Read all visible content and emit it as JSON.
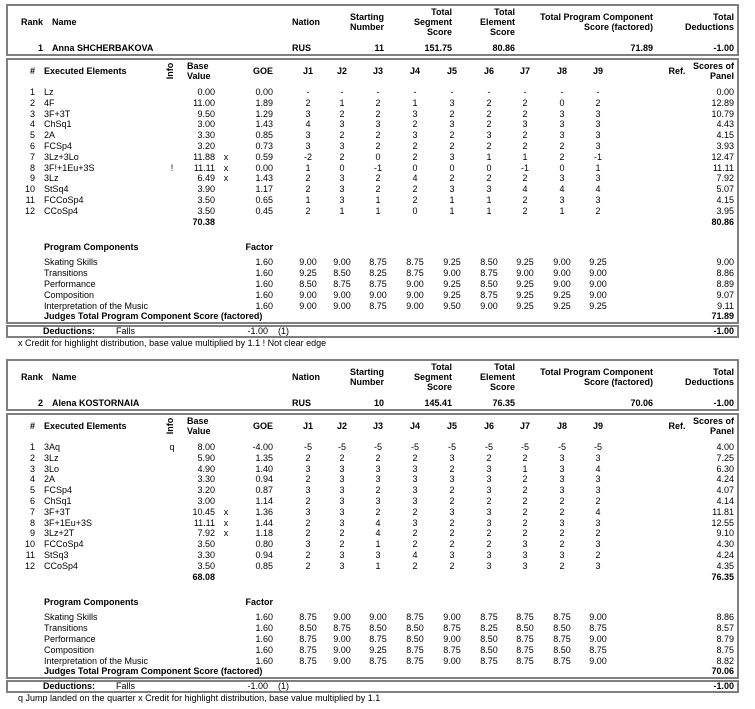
{
  "labels": {
    "rank": "Rank",
    "name": "Name",
    "nation": "Nation",
    "starting_number": [
      "Starting",
      "Number"
    ],
    "tss": [
      "Total",
      "Segment",
      "Score"
    ],
    "tes": [
      "Total",
      "Element",
      "Score"
    ],
    "pcs": [
      "Total Program Component",
      "Score (factored)"
    ],
    "ded": [
      "Total",
      "Deductions"
    ],
    "num": "#",
    "elements": "Executed Elements",
    "info": "Info",
    "base": [
      "Base",
      "Value"
    ],
    "goe": "GOE",
    "judges": [
      "J1",
      "J2",
      "J3",
      "J4",
      "J5",
      "J6",
      "J7",
      "J8",
      "J9"
    ],
    "ref": "Ref.",
    "panel": [
      "Scores of",
      "Panel"
    ],
    "program_components": "Program Components",
    "factor": "Factor",
    "judges_total": "Judges Total Program Component Score (factored)",
    "deductions": "Deductions:"
  },
  "skaters": [
    {
      "rank": "1",
      "name": "Anna SHCHERBAKOVA",
      "nation": "RUS",
      "starting_number": "11",
      "tss": "151.75",
      "tes": "80.86",
      "pcs": "71.89",
      "deductions_total": "-1.00",
      "elements": [
        {
          "num": "1",
          "name": "Lz",
          "info": "",
          "base": "0.00",
          "credit": "",
          "goe": "0.00",
          "judges": [
            "-",
            "-",
            "-",
            "-",
            "-",
            "-",
            "-",
            "-",
            "-"
          ],
          "panel": "0.00"
        },
        {
          "num": "2",
          "name": "4F",
          "info": "",
          "base": "11.00",
          "credit": "",
          "goe": "1.89",
          "judges": [
            "2",
            "1",
            "2",
            "1",
            "3",
            "2",
            "2",
            "0",
            "2"
          ],
          "panel": "12.89"
        },
        {
          "num": "3",
          "name": "3F+3T",
          "info": "",
          "base": "9.50",
          "credit": "",
          "goe": "1.29",
          "judges": [
            "3",
            "2",
            "2",
            "3",
            "2",
            "2",
            "2",
            "3",
            "3"
          ],
          "panel": "10.79"
        },
        {
          "num": "4",
          "name": "ChSq1",
          "info": "",
          "base": "3.00",
          "credit": "",
          "goe": "1.43",
          "judges": [
            "4",
            "3",
            "3",
            "2",
            "3",
            "2",
            "3",
            "3",
            "3"
          ],
          "panel": "4.43"
        },
        {
          "num": "5",
          "name": "2A",
          "info": "",
          "base": "3.30",
          "credit": "",
          "goe": "0.85",
          "judges": [
            "3",
            "2",
            "2",
            "3",
            "2",
            "3",
            "2",
            "3",
            "3"
          ],
          "panel": "4.15"
        },
        {
          "num": "6",
          "name": "FCSp4",
          "info": "",
          "base": "3.20",
          "credit": "",
          "goe": "0.73",
          "judges": [
            "3",
            "3",
            "2",
            "2",
            "2",
            "2",
            "2",
            "2",
            "3"
          ],
          "panel": "3.93"
        },
        {
          "num": "7",
          "name": "3Lz+3Lo",
          "info": "",
          "base": "11.88",
          "credit": "x",
          "goe": "0.59",
          "judges": [
            "-2",
            "2",
            "0",
            "2",
            "3",
            "1",
            "1",
            "2",
            "-1"
          ],
          "panel": "12.47"
        },
        {
          "num": "8",
          "name": "3F!+1Eu+3S",
          "info": "!",
          "base": "11.11",
          "credit": "x",
          "goe": "0.00",
          "judges": [
            "1",
            "0",
            "-1",
            "0",
            "0",
            "0",
            "-1",
            "0",
            "1"
          ],
          "panel": "11.11"
        },
        {
          "num": "9",
          "name": "3Lz",
          "info": "",
          "base": "6.49",
          "credit": "x",
          "goe": "1.43",
          "judges": [
            "2",
            "3",
            "2",
            "4",
            "2",
            "2",
            "2",
            "3",
            "3"
          ],
          "panel": "7.92"
        },
        {
          "num": "10",
          "name": "StSq4",
          "info": "",
          "base": "3.90",
          "credit": "",
          "goe": "1.17",
          "judges": [
            "2",
            "3",
            "2",
            "2",
            "3",
            "3",
            "4",
            "4",
            "4"
          ],
          "panel": "5.07"
        },
        {
          "num": "11",
          "name": "FCCoSp4",
          "info": "",
          "base": "3.50",
          "credit": "",
          "goe": "0.65",
          "judges": [
            "1",
            "3",
            "1",
            "2",
            "1",
            "1",
            "2",
            "3",
            "3"
          ],
          "panel": "4.15"
        },
        {
          "num": "12",
          "name": "CCoSp4",
          "info": "",
          "base": "3.50",
          "credit": "",
          "goe": "0.45",
          "judges": [
            "2",
            "1",
            "1",
            "0",
            "1",
            "1",
            "2",
            "1",
            "2"
          ],
          "panel": "3.95"
        }
      ],
      "base_total": "70.38",
      "elements_total": "80.86",
      "components": [
        {
          "name": "Skating Skills",
          "factor": "1.60",
          "judges": [
            "9.00",
            "9.00",
            "8.75",
            "8.75",
            "9.25",
            "8.50",
            "9.25",
            "9.00",
            "9.25"
          ],
          "panel": "9.00"
        },
        {
          "name": "Transitions",
          "factor": "1.60",
          "judges": [
            "9.25",
            "8.50",
            "8.25",
            "8.75",
            "9.00",
            "8.75",
            "9.00",
            "9.00",
            "9.00"
          ],
          "panel": "8.86"
        },
        {
          "name": "Performance",
          "factor": "1.60",
          "judges": [
            "8.50",
            "8.75",
            "8.75",
            "9.00",
            "9.25",
            "8.50",
            "9.25",
            "9.00",
            "9.00"
          ],
          "panel": "8.89"
        },
        {
          "name": "Composition",
          "factor": "1.60",
          "judges": [
            "9.00",
            "9.00",
            "9.00",
            "9.00",
            "9.25",
            "8.75",
            "9.25",
            "9.25",
            "9.00"
          ],
          "panel": "9.07"
        },
        {
          "name": "Interpretation of the Music",
          "factor": "1.60",
          "judges": [
            "9.00",
            "9.00",
            "8.75",
            "9.00",
            "9.50",
            "9.00",
            "9.25",
            "9.25",
            "9.25"
          ],
          "panel": "9.11"
        }
      ],
      "pcs_total": "71.89",
      "deductions": {
        "type": "Falls",
        "value": "-1.00",
        "count": "(1)",
        "total": "-1.00"
      },
      "footnote": "x Credit for highlight distribution, base value multiplied by 1.1   ! Not clear edge"
    },
    {
      "rank": "2",
      "name": "Alena KOSTORNAIA",
      "nation": "RUS",
      "starting_number": "10",
      "tss": "145.41",
      "tes": "76.35",
      "pcs": "70.06",
      "deductions_total": "-1.00",
      "elements": [
        {
          "num": "1",
          "name": "3Aq",
          "info": "q",
          "base": "8.00",
          "credit": "",
          "goe": "-4.00",
          "judges": [
            "-5",
            "-5",
            "-5",
            "-5",
            "-5",
            "-5",
            "-5",
            "-5",
            "-5"
          ],
          "panel": "4.00"
        },
        {
          "num": "2",
          "name": "3Lz",
          "info": "",
          "base": "5.90",
          "credit": "",
          "goe": "1.35",
          "judges": [
            "2",
            "2",
            "2",
            "2",
            "3",
            "2",
            "2",
            "3",
            "3"
          ],
          "panel": "7.25"
        },
        {
          "num": "3",
          "name": "3Lo",
          "info": "",
          "base": "4.90",
          "credit": "",
          "goe": "1.40",
          "judges": [
            "3",
            "3",
            "3",
            "3",
            "2",
            "3",
            "1",
            "3",
            "4"
          ],
          "panel": "6.30"
        },
        {
          "num": "4",
          "name": "2A",
          "info": "",
          "base": "3.30",
          "credit": "",
          "goe": "0.94",
          "judges": [
            "2",
            "3",
            "3",
            "3",
            "3",
            "3",
            "2",
            "3",
            "3"
          ],
          "panel": "4.24"
        },
        {
          "num": "5",
          "name": "FCSp4",
          "info": "",
          "base": "3.20",
          "credit": "",
          "goe": "0.87",
          "judges": [
            "3",
            "3",
            "2",
            "3",
            "2",
            "3",
            "2",
            "3",
            "3"
          ],
          "panel": "4.07"
        },
        {
          "num": "6",
          "name": "ChSq1",
          "info": "",
          "base": "3.00",
          "credit": "",
          "goe": "1.14",
          "judges": [
            "2",
            "3",
            "3",
            "3",
            "2",
            "2",
            "2",
            "2",
            "2"
          ],
          "panel": "4.14"
        },
        {
          "num": "7",
          "name": "3F+3T",
          "info": "",
          "base": "10.45",
          "credit": "x",
          "goe": "1.36",
          "judges": [
            "3",
            "3",
            "2",
            "2",
            "3",
            "3",
            "2",
            "2",
            "4"
          ],
          "panel": "11.81"
        },
        {
          "num": "8",
          "name": "3F+1Eu+3S",
          "info": "",
          "base": "11.11",
          "credit": "x",
          "goe": "1.44",
          "judges": [
            "2",
            "3",
            "4",
            "3",
            "2",
            "3",
            "2",
            "3",
            "3"
          ],
          "panel": "12.55"
        },
        {
          "num": "9",
          "name": "3Lz+2T",
          "info": "",
          "base": "7.92",
          "credit": "x",
          "goe": "1.18",
          "judges": [
            "2",
            "2",
            "4",
            "2",
            "2",
            "2",
            "2",
            "2",
            "2"
          ],
          "panel": "9.10"
        },
        {
          "num": "10",
          "name": "FCCoSp4",
          "info": "",
          "base": "3.50",
          "credit": "",
          "goe": "0.80",
          "judges": [
            "3",
            "2",
            "1",
            "2",
            "2",
            "2",
            "3",
            "2",
            "3"
          ],
          "panel": "4.30"
        },
        {
          "num": "11",
          "name": "StSq3",
          "info": "",
          "base": "3.30",
          "credit": "",
          "goe": "0.94",
          "judges": [
            "2",
            "3",
            "3",
            "4",
            "3",
            "3",
            "3",
            "3",
            "2"
          ],
          "panel": "4.24"
        },
        {
          "num": "12",
          "name": "CCoSp4",
          "info": "",
          "base": "3.50",
          "credit": "",
          "goe": "0.85",
          "judges": [
            "2",
            "3",
            "1",
            "2",
            "2",
            "3",
            "3",
            "2",
            "3"
          ],
          "panel": "4.35"
        }
      ],
      "base_total": "68.08",
      "elements_total": "76.35",
      "components": [
        {
          "name": "Skating Skills",
          "factor": "1.60",
          "judges": [
            "8.75",
            "9.00",
            "9.00",
            "8.75",
            "9.00",
            "8.75",
            "8.75",
            "8.75",
            "9.00"
          ],
          "panel": "8.86"
        },
        {
          "name": "Transitions",
          "factor": "1.60",
          "judges": [
            "8.50",
            "8.75",
            "8.50",
            "8.50",
            "8.75",
            "8.25",
            "8.50",
            "8.50",
            "8.75"
          ],
          "panel": "8.57"
        },
        {
          "name": "Performance",
          "factor": "1.60",
          "judges": [
            "8.75",
            "9.00",
            "8.75",
            "8.50",
            "9.00",
            "8.50",
            "8.75",
            "8.75",
            "9.00"
          ],
          "panel": "8.79"
        },
        {
          "name": "Composition",
          "factor": "1.60",
          "judges": [
            "8.75",
            "9.00",
            "9.25",
            "8.75",
            "8.75",
            "8.50",
            "8.75",
            "8.50",
            "8.75"
          ],
          "panel": "8.75"
        },
        {
          "name": "Interpretation of the Music",
          "factor": "1.60",
          "judges": [
            "8.75",
            "9.00",
            "8.75",
            "8.75",
            "9.00",
            "8.75",
            "8.75",
            "8.75",
            "9.00"
          ],
          "panel": "8.82"
        }
      ],
      "pcs_total": "70.06",
      "deductions": {
        "type": "Falls",
        "value": "-1.00",
        "count": "(1)",
        "total": "-1.00"
      },
      "footnote": "q Jump landed on the quarter   x Credit for highlight distribution, base value multiplied by 1.1"
    }
  ]
}
